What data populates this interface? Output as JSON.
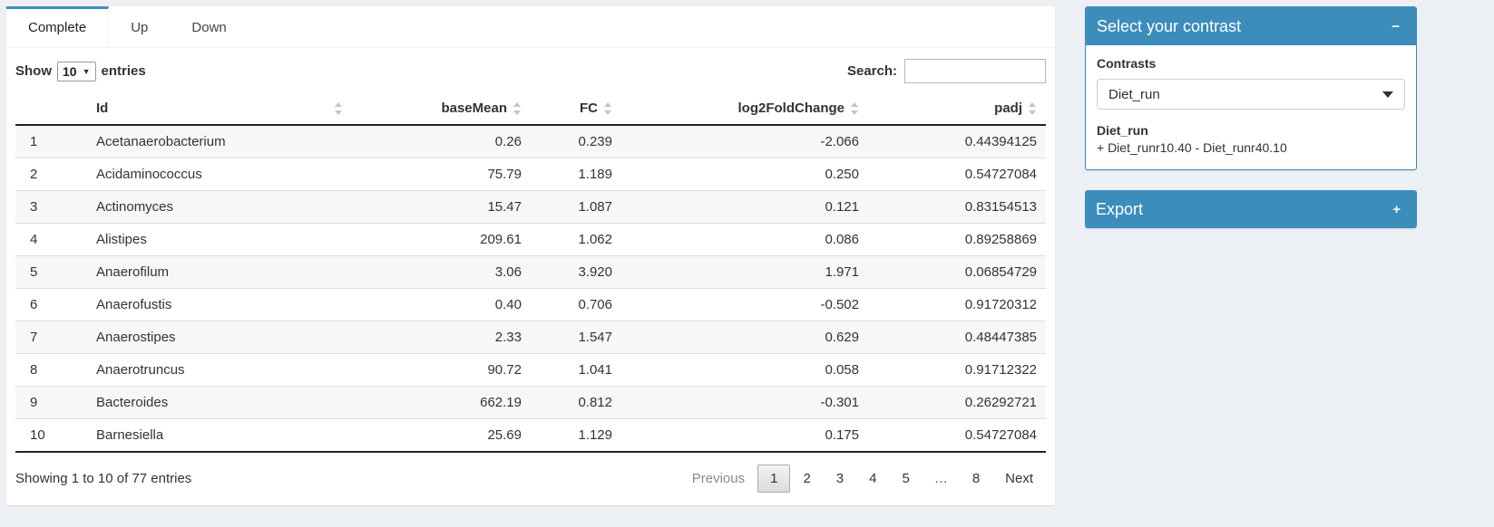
{
  "colors": {
    "primary": "#3c8dbc",
    "page_bg": "#ecf0f5"
  },
  "tabs": [
    {
      "label": "Complete",
      "active": true
    },
    {
      "label": "Up",
      "active": false
    },
    {
      "label": "Down",
      "active": false
    }
  ],
  "length_control": {
    "prefix": "Show",
    "value": "10",
    "suffix": "entries"
  },
  "search": {
    "label": "Search:",
    "value": "",
    "placeholder": ""
  },
  "table": {
    "columns": {
      "index": "",
      "id": "Id",
      "basemean": "baseMean",
      "fc": "FC",
      "log2fc": "log2FoldChange",
      "padj": "padj"
    },
    "rows": [
      {
        "index": "1",
        "id": "Acetanaerobacterium",
        "basemean": "0.26",
        "fc": "0.239",
        "log2fc": "-2.066",
        "padj": "0.44394125"
      },
      {
        "index": "2",
        "id": "Acidaminococcus",
        "basemean": "75.79",
        "fc": "1.189",
        "log2fc": "0.250",
        "padj": "0.54727084"
      },
      {
        "index": "3",
        "id": "Actinomyces",
        "basemean": "15.47",
        "fc": "1.087",
        "log2fc": "0.121",
        "padj": "0.83154513"
      },
      {
        "index": "4",
        "id": "Alistipes",
        "basemean": "209.61",
        "fc": "1.062",
        "log2fc": "0.086",
        "padj": "0.89258869"
      },
      {
        "index": "5",
        "id": "Anaerofilum",
        "basemean": "3.06",
        "fc": "3.920",
        "log2fc": "1.971",
        "padj": "0.06854729"
      },
      {
        "index": "6",
        "id": "Anaerofustis",
        "basemean": "0.40",
        "fc": "0.706",
        "log2fc": "-0.502",
        "padj": "0.91720312"
      },
      {
        "index": "7",
        "id": "Anaerostipes",
        "basemean": "2.33",
        "fc": "1.547",
        "log2fc": "0.629",
        "padj": "0.48447385"
      },
      {
        "index": "8",
        "id": "Anaerotruncus",
        "basemean": "90.72",
        "fc": "1.041",
        "log2fc": "0.058",
        "padj": "0.91712322"
      },
      {
        "index": "9",
        "id": "Bacteroides",
        "basemean": "662.19",
        "fc": "0.812",
        "log2fc": "-0.301",
        "padj": "0.26292721"
      },
      {
        "index": "10",
        "id": "Barnesiella",
        "basemean": "25.69",
        "fc": "1.129",
        "log2fc": "0.175",
        "padj": "0.54727084"
      }
    ],
    "info": "Showing 1 to 10 of 77 entries",
    "pagination": {
      "previous": "Previous",
      "pages": [
        "1",
        "2",
        "3",
        "4",
        "5"
      ],
      "ellipsis": "…",
      "last_page": "8",
      "next": "Next",
      "current": "1"
    }
  },
  "contrast_panel": {
    "title": "Select your contrast",
    "collapse_icon": "−",
    "field_label": "Contrasts",
    "selected_contrast": "Diet_run",
    "detail_title": "Diet_run",
    "detail_formula": "+ Diet_runr10.40 - Diet_runr40.10"
  },
  "export_panel": {
    "title": "Export",
    "expand_icon": "+"
  }
}
